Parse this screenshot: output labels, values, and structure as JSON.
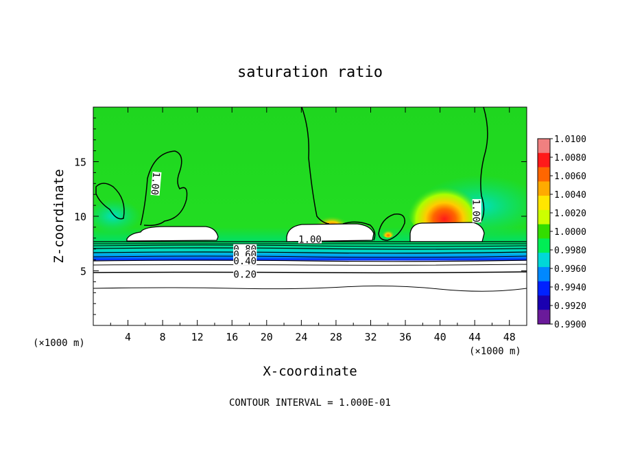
{
  "chart_data": {
    "type": "heatmap",
    "title": "saturation ratio",
    "xlabel": "X-coordinate",
    "ylabel": "Z-coordinate",
    "x_unit_label": "(×1000 m)",
    "y_unit_label": "(×1000 m)",
    "xlim": [
      0,
      50
    ],
    "ylim": [
      0,
      20
    ],
    "x_ticks": [
      4,
      8,
      12,
      16,
      20,
      24,
      28,
      32,
      36,
      40,
      44,
      48
    ],
    "y_ticks": [
      5,
      10,
      15
    ],
    "footer": "CONTOUR INTERVAL = 1.000E-01",
    "colorbar": {
      "labels": [
        "1.0100",
        "1.0080",
        "1.0060",
        "1.0040",
        "1.0020",
        "1.0000",
        "0.9980",
        "0.9960",
        "0.9940",
        "0.9920",
        "0.9900"
      ],
      "colors": [
        "#f08080",
        "#ff1a1a",
        "#ff6600",
        "#ffaa00",
        "#ffe600",
        "#ccff00",
        "#33dd00",
        "#00ee55",
        "#00d8d8",
        "#0088ff",
        "#0022ff",
        "#1a00b0",
        "#6a1a9a"
      ]
    },
    "contour_labels": [
      {
        "text": "1.00",
        "x": 7.2,
        "z": 13.0,
        "rotate": 95
      },
      {
        "text": "1.00",
        "x": 44.2,
        "z": 10.5,
        "rotate": 90
      },
      {
        "text": "1.00",
        "x": 25.0,
        "z": 7.9,
        "rotate": 0
      },
      {
        "text": "0.80",
        "x": 17.5,
        "z": 7.0,
        "rotate": 0
      },
      {
        "text": "0.60",
        "x": 17.5,
        "z": 6.5,
        "rotate": 0
      },
      {
        "text": "0.40",
        "x": 17.5,
        "z": 5.9,
        "rotate": 0
      },
      {
        "text": "0.20",
        "x": 17.5,
        "z": 4.7,
        "rotate": 0
      }
    ]
  }
}
